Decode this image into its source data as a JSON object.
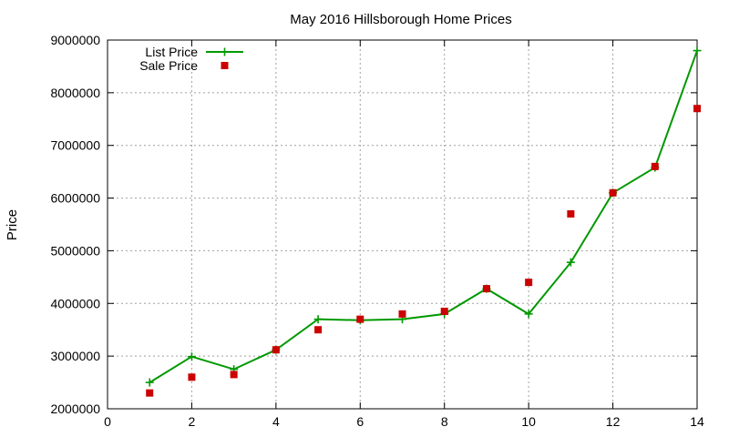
{
  "chart_data": {
    "type": "line",
    "title": "May 2016 Hillsborough Home Prices",
    "xlabel": "",
    "ylabel": "Price",
    "xlim": [
      0,
      14
    ],
    "ylim": [
      2000000,
      9000000
    ],
    "x_ticks": [
      "0",
      "2",
      "4",
      "6",
      "8",
      "10",
      "12",
      "14"
    ],
    "y_ticks": [
      "2000000",
      "3000000",
      "4000000",
      "5000000",
      "6000000",
      "7000000",
      "8000000",
      "9000000"
    ],
    "grid": true,
    "legend_position": "top-left",
    "series": [
      {
        "name": "List Price",
        "style": "linespoints",
        "color": "#009900",
        "marker": "plus",
        "x": [
          1,
          2,
          3,
          4,
          5,
          6,
          7,
          8,
          9,
          10,
          11,
          12,
          13,
          14
        ],
        "y": [
          2500000,
          2990000,
          2750000,
          3120000,
          3700000,
          3680000,
          3700000,
          3800000,
          4280000,
          3800000,
          4780000,
          6100000,
          6580000,
          8800000
        ]
      },
      {
        "name": "Sale Price",
        "style": "points",
        "color": "#cc0000",
        "marker": "square",
        "x": [
          1,
          2,
          3,
          4,
          5,
          6,
          7,
          8,
          9,
          10,
          11,
          12,
          13,
          14
        ],
        "y": [
          2300000,
          2600000,
          2650000,
          3120000,
          3500000,
          3700000,
          3800000,
          3850000,
          4280000,
          4400000,
          5700000,
          6100000,
          6600000,
          7700000
        ]
      }
    ]
  }
}
